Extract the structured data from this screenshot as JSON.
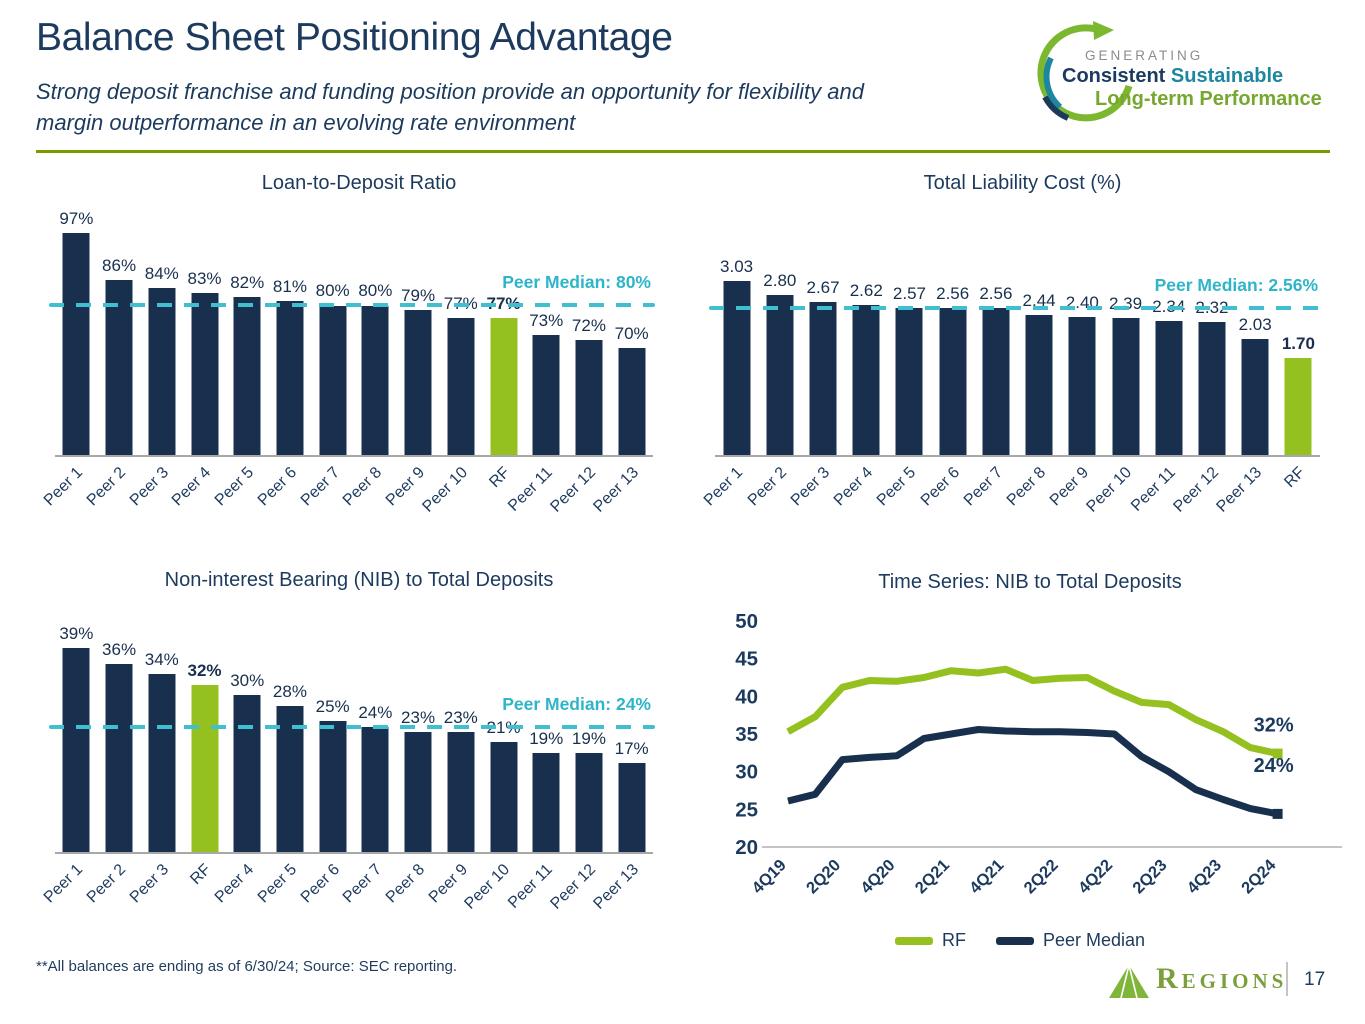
{
  "header": {
    "title": "Balance Sheet Positioning Advantage",
    "subtitle": "Strong deposit franchise and funding position provide an opportunity for flexibility and margin outperformance in an evolving rate environment"
  },
  "logo": {
    "generating": "GENERATING",
    "consistent": "Consistent",
    "sustainable": "Sustainable",
    "longterm": "Long-term Performance"
  },
  "footer": {
    "note": "**All balances are ending as of 6/30/24; Source: SEC reporting.",
    "brand": "Regions",
    "page": "17"
  },
  "colors": {
    "navy": "#18304e",
    "green": "#94c11f",
    "teal": "#2eb5c9",
    "dash_teal": "#3fbfd0",
    "axis_gray": "#a8a8a8",
    "rule_green": "#7a9a01"
  },
  "chart_data": [
    {
      "type": "bar",
      "title": "Loan-to-Deposit Ratio",
      "categories": [
        "Peer 1",
        "Peer 2",
        "Peer 3",
        "Peer 4",
        "Peer 5",
        "Peer 6",
        "Peer 7",
        "Peer 8",
        "Peer 9",
        "Peer 10",
        "RF",
        "Peer 11",
        "Peer 12",
        "Peer 13"
      ],
      "values": [
        97,
        86,
        84,
        83,
        82,
        81,
        80,
        80,
        79,
        77,
        77,
        73,
        72,
        70
      ],
      "label_format": "percent",
      "highlight_index": 10,
      "median_value": 80,
      "median_label": "Peer Median: 80%",
      "ylim": [
        45,
        100
      ],
      "grid": false
    },
    {
      "type": "bar",
      "title": "Total Liability Cost (%)",
      "categories": [
        "Peer 1",
        "Peer 2",
        "Peer 3",
        "Peer 4",
        "Peer 5",
        "Peer 6",
        "Peer 7",
        "Peer 8",
        "Peer 9",
        "Peer 10",
        "Peer 11",
        "Peer 12",
        "Peer 13",
        "RF"
      ],
      "values": [
        3.03,
        2.8,
        2.67,
        2.62,
        2.57,
        2.56,
        2.56,
        2.44,
        2.4,
        2.39,
        2.34,
        2.32,
        2.03,
        1.7
      ],
      "label_format": "2dp",
      "highlight_index": 13,
      "median_value": 2.56,
      "median_label": "Peer Median: 2.56%",
      "ylim": [
        0,
        4.1
      ],
      "grid": false
    },
    {
      "type": "bar",
      "title": "Non-interest Bearing (NIB) to Total Deposits",
      "categories": [
        "Peer 1",
        "Peer 2",
        "Peer 3",
        "RF",
        "Peer 4",
        "Peer 5",
        "Peer 6",
        "Peer 7",
        "Peer 8",
        "Peer 9",
        "Peer 10",
        "Peer 11",
        "Peer 12",
        "Peer 13"
      ],
      "values": [
        39,
        36,
        34,
        32,
        30,
        28,
        25,
        24,
        23,
        23,
        21,
        19,
        19,
        17
      ],
      "label_format": "percent",
      "highlight_index": 3,
      "median_value": 24,
      "median_label": "Peer Median: 24%",
      "ylim": [
        0,
        45
      ],
      "grid": false
    },
    {
      "type": "line",
      "title": "Time Series: NIB to Total Deposits",
      "x_ticks": [
        "4Q19",
        "2Q20",
        "4Q20",
        "2Q21",
        "4Q21",
        "2Q22",
        "4Q22",
        "2Q23",
        "4Q23",
        "2Q24"
      ],
      "yticks": [
        20,
        25,
        30,
        35,
        40,
        45,
        50
      ],
      "ylim": [
        20,
        50
      ],
      "legend_position": "bottom",
      "series": [
        {
          "name": "RF",
          "color": "#94c11f",
          "end_label": "32%",
          "values": [
            35.3,
            37.3,
            41.2,
            42.1,
            42.0,
            42.5,
            43.4,
            43.1,
            43.6,
            42.1,
            42.4,
            42.5,
            40.7,
            39.2,
            38.9,
            36.9,
            35.3,
            33.2,
            32.4
          ]
        },
        {
          "name": "Peer Median",
          "color": "#18304e",
          "end_label": "24%",
          "values": [
            26.1,
            27.0,
            31.6,
            31.9,
            32.1,
            34.4,
            35.0,
            35.6,
            35.4,
            35.3,
            35.3,
            35.2,
            35.0,
            32.0,
            30.0,
            27.6,
            26.3,
            25.1,
            24.4
          ]
        }
      ]
    }
  ]
}
